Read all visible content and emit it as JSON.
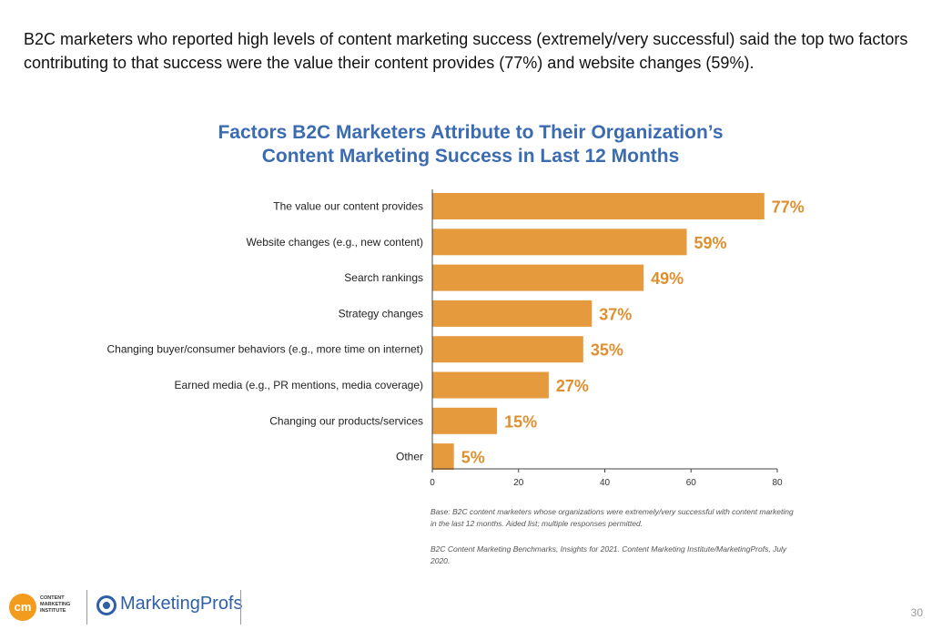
{
  "intro_text": "B2C marketers who reported high levels of content marketing success (extremely/very successful) said the top two factors contributing to that success were the value their content provides (77%) and website changes (59%).",
  "chart_data": {
    "type": "bar",
    "orientation": "horizontal",
    "title_line1": "Factors B2C Marketers Attribute to Their Organization’s",
    "title_line2": "Content Marketing Success in Last 12 Months",
    "categories": [
      "The value our content provides",
      "Website changes (e.g., new content)",
      "Search rankings",
      "Strategy changes",
      "Changing buyer/consumer behaviors (e.g., more time on internet)",
      "Earned media (e.g., PR mentions, media coverage)",
      "Changing our products/services",
      "Other"
    ],
    "values": [
      77,
      59,
      49,
      37,
      35,
      27,
      15,
      5
    ],
    "value_labels": [
      "77%",
      "59%",
      "49%",
      "37%",
      "35%",
      "27%",
      "15%",
      "5%"
    ],
    "xlim": [
      0,
      80
    ],
    "x_ticks": [
      "0",
      "20",
      "40",
      "60",
      "80"
    ],
    "grid": false,
    "bar_color": "#e59a3e",
    "label_color": "#df8f2e",
    "title_color": "#3b6bb0"
  },
  "notes": {
    "base": "Base: B2C content marketers whose organizations were extremely/very successful with content marketing in the last 12 months. Aided list; multiple responses permitted.",
    "source": "B2C Content Marketing Benchmarks, Insights for 2021. Content Marketing Institute/MarketingProfs, July 2020."
  },
  "footer": {
    "cmi_mark": "cm",
    "cmi_text": "CONTENT MARKETING INSTITUTE",
    "mp_text": "MarketingProfs",
    "page_number": "30"
  }
}
